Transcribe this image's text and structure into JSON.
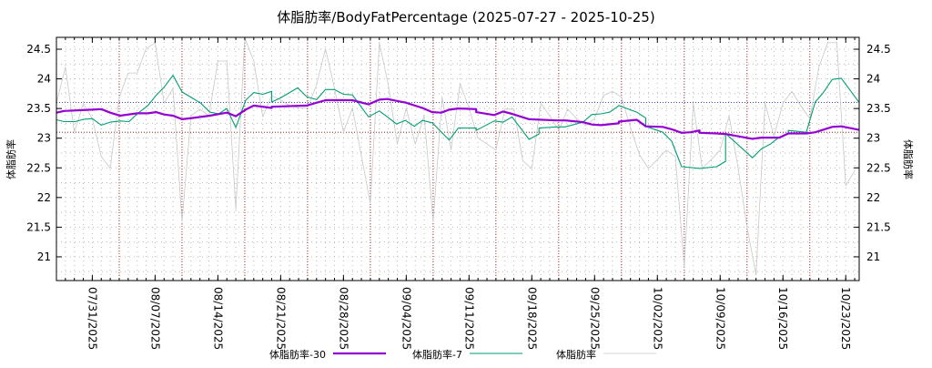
{
  "chart_data": {
    "type": "line",
    "title": "体脂肪率/BodyFatPercentage (2025-07-27 - 2025-10-25)",
    "ylabel": "体脂肪率",
    "y2label": "体脂肪率",
    "xlabel": "",
    "x_start_date": "2025-07-27",
    "xlim_days": [
      0,
      89.5
    ],
    "ylim": [
      20.6,
      24.7
    ],
    "yticks": [
      21,
      21.5,
      22,
      22.5,
      23,
      23.5,
      24,
      24.5
    ],
    "ytick_labels": [
      "21",
      "21.5",
      "22",
      "22.5",
      "23",
      "23.5",
      "24",
      "24.5"
    ],
    "xticks_days": [
      4,
      11,
      18,
      25,
      32,
      39,
      46,
      53,
      60,
      67,
      74,
      81,
      88
    ],
    "xtick_labels": [
      "07/31/2025",
      "08/07/2025",
      "08/14/2025",
      "08/21/2025",
      "08/28/2025",
      "09/04/2025",
      "09/11/2025",
      "09/18/2025",
      "09/25/2025",
      "10/02/2025",
      "10/09/2025",
      "10/16/2025",
      "10/23/2025"
    ],
    "week_lines_days": [
      7,
      14,
      21,
      28,
      35,
      42,
      49,
      56,
      63,
      70,
      77,
      84
    ],
    "hlines": [
      {
        "value": 23.6,
        "color": "#0000cc"
      },
      {
        "value": 23.1,
        "color": "#8b0000"
      }
    ],
    "grid": true,
    "legend_position": "bottom",
    "series": [
      {
        "name": "体脂肪率-30",
        "color": "#9400d3",
        "points": [
          [
            0,
            23.43
          ],
          [
            0.85,
            23.46
          ],
          [
            4,
            23.48
          ],
          [
            5,
            23.49
          ],
          [
            6,
            23.43
          ],
          [
            7.1,
            23.38
          ],
          [
            9,
            23.42
          ],
          [
            10.2,
            23.42
          ],
          [
            11.1,
            23.44
          ],
          [
            12,
            23.4
          ],
          [
            13,
            23.38
          ],
          [
            14,
            23.32
          ],
          [
            15.1,
            23.34
          ],
          [
            17.1,
            23.38
          ],
          [
            19,
            23.43
          ],
          [
            20,
            23.37
          ],
          [
            21.1,
            23.48
          ],
          [
            22,
            23.55
          ],
          [
            24,
            23.51
          ],
          [
            24,
            23.53
          ],
          [
            27.9,
            23.55
          ],
          [
            30,
            23.64
          ],
          [
            33,
            23.64
          ],
          [
            34.8,
            23.57
          ],
          [
            36,
            23.65
          ],
          [
            36.9,
            23.66
          ],
          [
            37.9,
            23.63
          ],
          [
            38.9,
            23.6
          ],
          [
            40.8,
            23.51
          ],
          [
            41.9,
            23.44
          ],
          [
            42.9,
            23.43
          ],
          [
            43.8,
            23.48
          ],
          [
            44.8,
            23.5
          ],
          [
            46.8,
            23.49
          ],
          [
            46.8,
            23.44
          ],
          [
            48.8,
            23.39
          ],
          [
            49.8,
            23.45
          ],
          [
            50.8,
            23.41
          ],
          [
            52.7,
            23.32
          ],
          [
            55.8,
            23.3
          ],
          [
            56.7,
            23.3
          ],
          [
            58.7,
            23.27
          ],
          [
            59.7,
            23.23
          ],
          [
            60.7,
            23.22
          ],
          [
            62.7,
            23.25
          ],
          [
            62.7,
            23.28
          ],
          [
            64.7,
            23.31
          ],
          [
            65.7,
            23.2
          ],
          [
            67.6,
            23.19
          ],
          [
            68.6,
            23.15
          ],
          [
            69.7,
            23.09
          ],
          [
            70.7,
            23.1
          ],
          [
            71.7,
            23.13
          ],
          [
            71.7,
            23.09
          ],
          [
            73.6,
            23.08
          ],
          [
            74.6,
            23.07
          ],
          [
            77.6,
            22.99
          ],
          [
            78.6,
            23.01
          ],
          [
            80.6,
            23.01
          ],
          [
            81.6,
            23.08
          ],
          [
            83.6,
            23.08
          ],
          [
            84.6,
            23.1
          ],
          [
            86.5,
            23.19
          ],
          [
            87.5,
            23.2
          ],
          [
            89.5,
            23.14
          ]
        ]
      },
      {
        "name": "体脂肪率-7",
        "color": "#009e73",
        "points": [
          [
            0,
            23.31
          ],
          [
            0.85,
            23.28
          ],
          [
            2.1,
            23.28
          ],
          [
            3.05,
            23.32
          ],
          [
            4,
            23.33
          ],
          [
            5,
            23.22
          ],
          [
            6,
            23.27
          ],
          [
            7.1,
            23.29
          ],
          [
            8.1,
            23.28
          ],
          [
            9,
            23.41
          ],
          [
            10.2,
            23.55
          ],
          [
            11.1,
            23.72
          ],
          [
            12,
            23.86
          ],
          [
            13,
            24.06
          ],
          [
            14,
            23.78
          ],
          [
            15.1,
            23.68
          ],
          [
            16.1,
            23.59
          ],
          [
            17.1,
            23.44
          ],
          [
            18.1,
            23.41
          ],
          [
            19,
            23.5
          ],
          [
            20,
            23.18
          ],
          [
            21.1,
            23.64
          ],
          [
            22,
            23.77
          ],
          [
            23,
            23.74
          ],
          [
            24,
            23.79
          ],
          [
            24,
            23.61
          ],
          [
            25,
            23.68
          ],
          [
            26.9,
            23.85
          ],
          [
            27.9,
            23.7
          ],
          [
            29,
            23.65
          ],
          [
            30,
            23.82
          ],
          [
            31,
            23.82
          ],
          [
            32,
            23.74
          ],
          [
            33,
            23.73
          ],
          [
            34.8,
            23.36
          ],
          [
            36,
            23.46
          ],
          [
            36.9,
            23.36
          ],
          [
            37.9,
            23.24
          ],
          [
            38.9,
            23.3
          ],
          [
            39.9,
            23.2
          ],
          [
            40.8,
            23.3
          ],
          [
            41.9,
            23.26
          ],
          [
            43.8,
            22.97
          ],
          [
            44.8,
            23.17
          ],
          [
            46.8,
            23.17
          ],
          [
            46.8,
            23.13
          ],
          [
            48.8,
            23.29
          ],
          [
            49.8,
            23.27
          ],
          [
            50.8,
            23.36
          ],
          [
            52.7,
            22.98
          ],
          [
            53.8,
            23.07
          ],
          [
            53.8,
            23.17
          ],
          [
            55.8,
            23.19
          ],
          [
            56.7,
            23.19
          ],
          [
            58.7,
            23.27
          ],
          [
            59.7,
            23.4
          ],
          [
            60.7,
            23.41
          ],
          [
            61.7,
            23.44
          ],
          [
            62.7,
            23.55
          ],
          [
            64.7,
            23.44
          ],
          [
            65.7,
            23.34
          ],
          [
            65.7,
            23.2
          ],
          [
            67.6,
            23.1
          ],
          [
            68.6,
            22.95
          ],
          [
            69.7,
            22.52
          ],
          [
            71.7,
            22.49
          ],
          [
            73.6,
            22.52
          ],
          [
            74.6,
            22.61
          ],
          [
            74.6,
            23.08
          ],
          [
            77.6,
            22.67
          ],
          [
            78.6,
            22.82
          ],
          [
            79.6,
            22.9
          ],
          [
            80.6,
            23.02
          ],
          [
            81.6,
            23.07
          ],
          [
            81.6,
            23.13
          ],
          [
            83.6,
            23.1
          ],
          [
            84.6,
            23.61
          ],
          [
            85.5,
            23.77
          ],
          [
            86.5,
            23.99
          ],
          [
            87.5,
            24.01
          ],
          [
            89.5,
            23.6
          ]
        ]
      },
      {
        "name": "体脂肪率",
        "color": "#c8c8c8",
        "points": [
          [
            0,
            23.59
          ],
          [
            1,
            24.2
          ],
          [
            2,
            23.1
          ],
          [
            3,
            23.59
          ],
          [
            4,
            23.33
          ],
          [
            5,
            22.69
          ],
          [
            6,
            22.49
          ],
          [
            7,
            23.69
          ],
          [
            8,
            24.1
          ],
          [
            9,
            24.1
          ],
          [
            10,
            24.51
          ],
          [
            11,
            24.61
          ],
          [
            12,
            23.59
          ],
          [
            13,
            23.84
          ],
          [
            14,
            21.59
          ],
          [
            15,
            23.38
          ],
          [
            16,
            23.49
          ],
          [
            17,
            23.38
          ],
          [
            18,
            24.3
          ],
          [
            19,
            24.3
          ],
          [
            20,
            21.8
          ],
          [
            21,
            24.69
          ],
          [
            22,
            24.3
          ],
          [
            23,
            23.36
          ],
          [
            24,
            23.72
          ],
          [
            25,
            23.64
          ],
          [
            26,
            23.55
          ],
          [
            27,
            23.51
          ],
          [
            28,
            23.51
          ],
          [
            29,
            23.9
          ],
          [
            30,
            24.51
          ],
          [
            31,
            23.84
          ],
          [
            32,
            23.1
          ],
          [
            33,
            23.51
          ],
          [
            34,
            22.7
          ],
          [
            35,
            21.9
          ],
          [
            36,
            24.61
          ],
          [
            37,
            23.9
          ],
          [
            38,
            22.9
          ],
          [
            39,
            23.51
          ],
          [
            40,
            22.9
          ],
          [
            41,
            23.38
          ],
          [
            42,
            21.59
          ],
          [
            43,
            23.69
          ],
          [
            44,
            22.8
          ],
          [
            45,
            23.92
          ],
          [
            46,
            23.51
          ],
          [
            47,
            23.0
          ],
          [
            48,
            22.9
          ],
          [
            49,
            22.8
          ],
          [
            50,
            23.49
          ],
          [
            51,
            23.49
          ],
          [
            52,
            22.62
          ],
          [
            53,
            22.49
          ],
          [
            54,
            23.59
          ],
          [
            55,
            23.38
          ],
          [
            56,
            23.13
          ],
          [
            57,
            23.49
          ],
          [
            58,
            23.33
          ],
          [
            59,
            23.21
          ],
          [
            60,
            23.33
          ],
          [
            61,
            23.72
          ],
          [
            62,
            23.79
          ],
          [
            63,
            23.69
          ],
          [
            64,
            23.18
          ],
          [
            65,
            22.72
          ],
          [
            66,
            22.49
          ],
          [
            67,
            22.64
          ],
          [
            68,
            22.8
          ],
          [
            69,
            22.69
          ],
          [
            70,
            20.83
          ],
          [
            71,
            23.59
          ],
          [
            72,
            22.49
          ],
          [
            73,
            22.64
          ],
          [
            74,
            22.8
          ],
          [
            75,
            23.38
          ],
          [
            76,
            22.5
          ],
          [
            77,
            21.5
          ],
          [
            78,
            20.7
          ],
          [
            79,
            23.59
          ],
          [
            80,
            23.03
          ],
          [
            81,
            23.59
          ],
          [
            82,
            23.79
          ],
          [
            83,
            23.54
          ],
          [
            84,
            23.33
          ],
          [
            85,
            24.2
          ],
          [
            86,
            24.61
          ],
          [
            87,
            24.61
          ],
          [
            88,
            22.2
          ],
          [
            89,
            22.45
          ]
        ]
      }
    ]
  }
}
